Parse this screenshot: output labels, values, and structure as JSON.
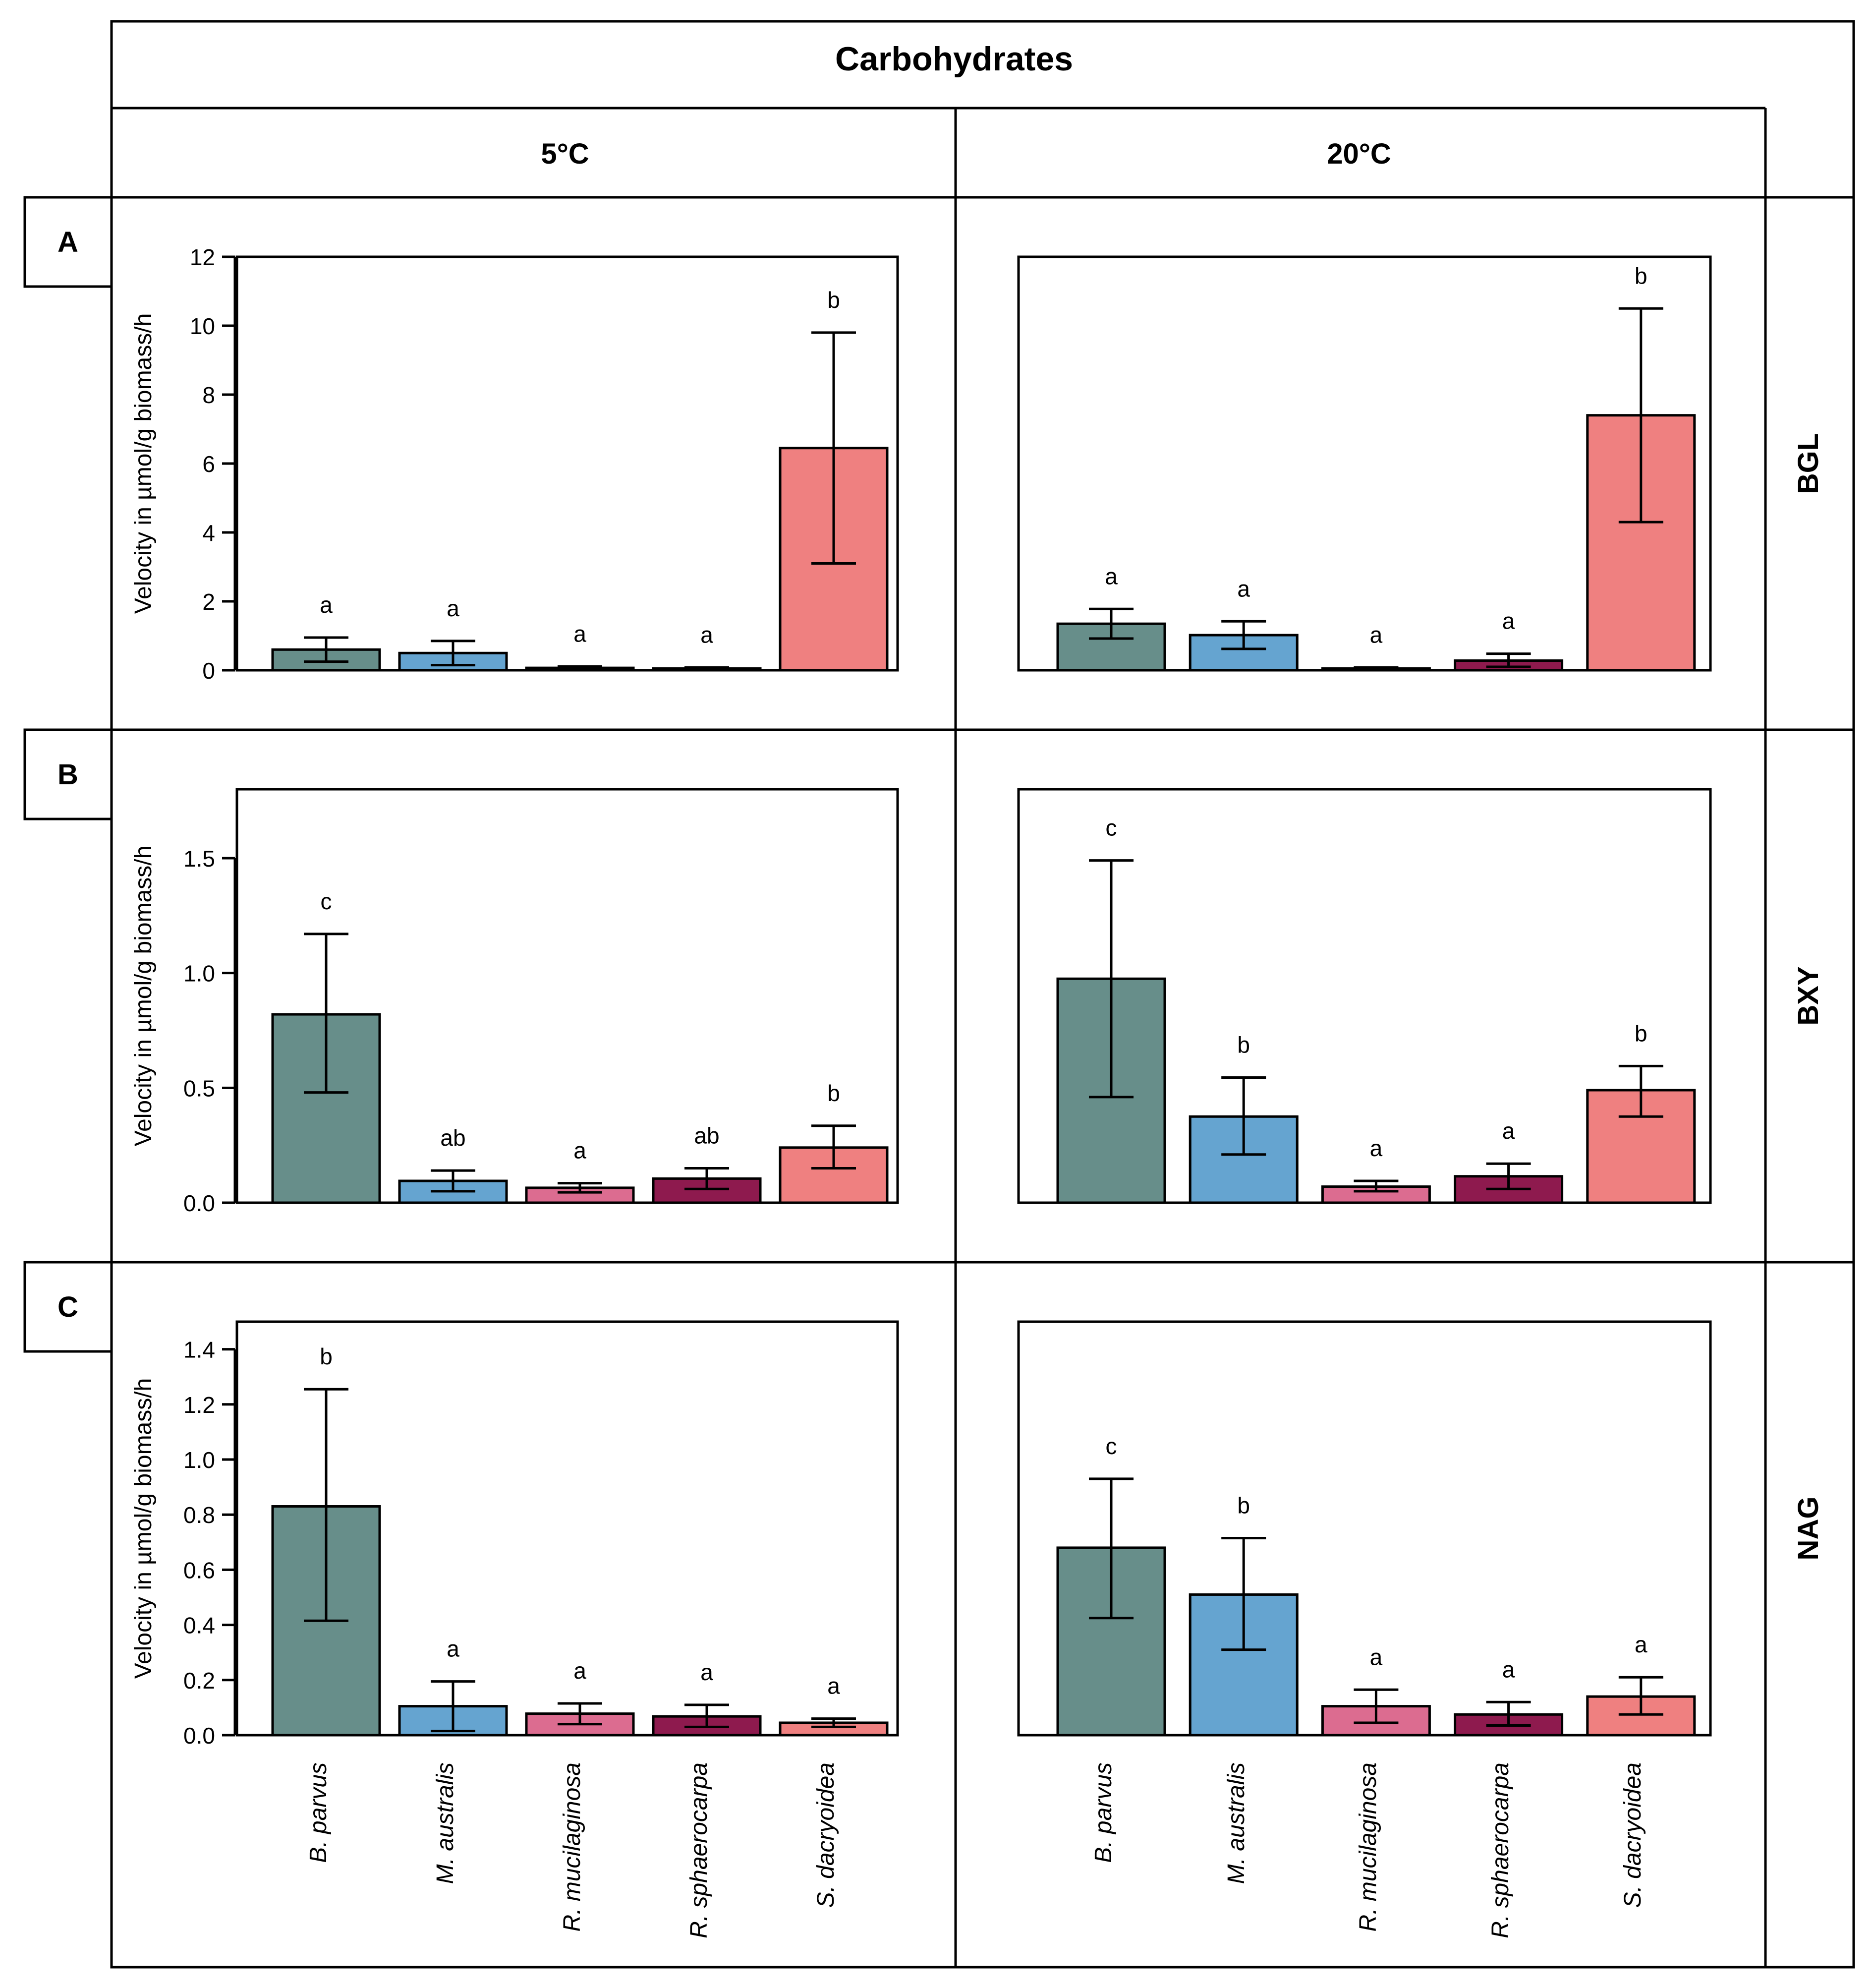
{
  "figure": {
    "title": "Carbohydrates",
    "col_headers": [
      "5°C",
      "20°C"
    ],
    "row_labels": [
      "A",
      "B",
      "C"
    ],
    "enzymes": [
      "BGL",
      "BXY",
      "NAG"
    ],
    "species": [
      "B. parvus",
      "M. australis",
      "R. mucilaginosa",
      "R. sphaerocarpa",
      "S. dacryoidea"
    ],
    "colors": [
      "#678e8a",
      "#65a4d0",
      "#dc6c90",
      "#8e1a4e",
      "#ef8080"
    ]
  },
  "chart_data": [
    {
      "type": "bar",
      "panel": "A",
      "enzyme": "BGL",
      "temperature": "5°C",
      "ylabel": "Velocity in µmol/g biomass/h",
      "ylim": [
        0,
        12
      ],
      "yticks": [
        0,
        2,
        4,
        6,
        8,
        10,
        12
      ],
      "ytick_labels": [
        "0",
        "2",
        "4",
        "6",
        "8",
        "10",
        "12"
      ],
      "categories": [
        "B. parvus",
        "M. australis",
        "R. mucilaginosa",
        "R. sphaerocarpa",
        "S. dacryoidea"
      ],
      "values": [
        0.6,
        0.5,
        0.07,
        0.05,
        6.45
      ],
      "error_low": [
        0.25,
        0.15,
        0.03,
        0.02,
        3.1
      ],
      "error_high": [
        0.95,
        0.85,
        0.11,
        0.08,
        9.8
      ],
      "letters": [
        "a",
        "a",
        "a",
        "a",
        "b"
      ]
    },
    {
      "type": "bar",
      "panel": "A",
      "enzyme": "BGL",
      "temperature": "20°C",
      "ylabel": "",
      "ylim": [
        0,
        12
      ],
      "yticks": [],
      "ytick_labels": [],
      "categories": [
        "B. parvus",
        "M. australis",
        "R. mucilaginosa",
        "R. sphaerocarpa",
        "S. dacryoidea"
      ],
      "values": [
        1.35,
        1.02,
        0.05,
        0.28,
        7.4
      ],
      "error_low": [
        0.92,
        0.62,
        0.02,
        0.1,
        4.3
      ],
      "error_high": [
        1.78,
        1.42,
        0.08,
        0.48,
        10.5
      ],
      "letters": [
        "a",
        "a",
        "a",
        "a",
        "b"
      ]
    },
    {
      "type": "bar",
      "panel": "B",
      "enzyme": "BXY",
      "temperature": "5°C",
      "ylabel": "Velocity in µmol/g biomass/h",
      "ylim": [
        0,
        1.8
      ],
      "yticks": [
        0,
        0.5,
        1.0,
        1.5
      ],
      "ytick_labels": [
        "0.0",
        "0.5",
        "1.0",
        "1.5"
      ],
      "categories": [
        "B. parvus",
        "M. australis",
        "R. mucilaginosa",
        "R. sphaerocarpa",
        "S. dacryoidea"
      ],
      "values": [
        0.82,
        0.095,
        0.065,
        0.105,
        0.24
      ],
      "error_low": [
        0.48,
        0.05,
        0.045,
        0.06,
        0.15
      ],
      "error_high": [
        1.17,
        0.14,
        0.085,
        0.15,
        0.335
      ],
      "letters": [
        "c",
        "ab",
        "a",
        "ab",
        "b"
      ]
    },
    {
      "type": "bar",
      "panel": "B",
      "enzyme": "BXY",
      "temperature": "20°C",
      "ylabel": "",
      "ylim": [
        0,
        1.8
      ],
      "yticks": [],
      "ytick_labels": [],
      "categories": [
        "B. parvus",
        "M. australis",
        "R. mucilaginosa",
        "R. sphaerocarpa",
        "S. dacryoidea"
      ],
      "values": [
        0.975,
        0.375,
        0.07,
        0.115,
        0.49
      ],
      "error_low": [
        0.46,
        0.21,
        0.05,
        0.06,
        0.375
      ],
      "error_high": [
        1.49,
        0.545,
        0.095,
        0.17,
        0.595
      ],
      "letters": [
        "c",
        "b",
        "a",
        "a",
        "b"
      ]
    },
    {
      "type": "bar",
      "panel": "C",
      "enzyme": "NAG",
      "temperature": "5°C",
      "ylabel": "Velocity in µmol/g biomass/h",
      "ylim": [
        0,
        1.5
      ],
      "yticks": [
        0,
        0.2,
        0.4,
        0.6,
        0.8,
        1.0,
        1.2,
        1.4
      ],
      "ytick_labels": [
        "0.0",
        "0.2",
        "0.4",
        "0.6",
        "0.8",
        "1.0",
        "1.2",
        "1.4"
      ],
      "categories": [
        "B. parvus",
        "M. australis",
        "R. mucilaginosa",
        "R. sphaerocarpa",
        "S. dacryoidea"
      ],
      "values": [
        0.83,
        0.105,
        0.078,
        0.068,
        0.045
      ],
      "error_low": [
        0.415,
        0.015,
        0.04,
        0.03,
        0.03
      ],
      "error_high": [
        1.255,
        0.195,
        0.115,
        0.11,
        0.06
      ],
      "letters": [
        "b",
        "a",
        "a",
        "a",
        "a"
      ]
    },
    {
      "type": "bar",
      "panel": "C",
      "enzyme": "NAG",
      "temperature": "20°C",
      "ylabel": "",
      "ylim": [
        0,
        1.5
      ],
      "yticks": [],
      "ytick_labels": [],
      "categories": [
        "B. parvus",
        "M. australis",
        "R. mucilaginosa",
        "R. sphaerocarpa",
        "S. dacryoidea"
      ],
      "values": [
        0.68,
        0.51,
        0.105,
        0.075,
        0.14
      ],
      "error_low": [
        0.425,
        0.31,
        0.045,
        0.035,
        0.075
      ],
      "error_high": [
        0.93,
        0.715,
        0.165,
        0.12,
        0.21
      ],
      "letters": [
        "c",
        "b",
        "a",
        "a",
        "a"
      ]
    }
  ]
}
